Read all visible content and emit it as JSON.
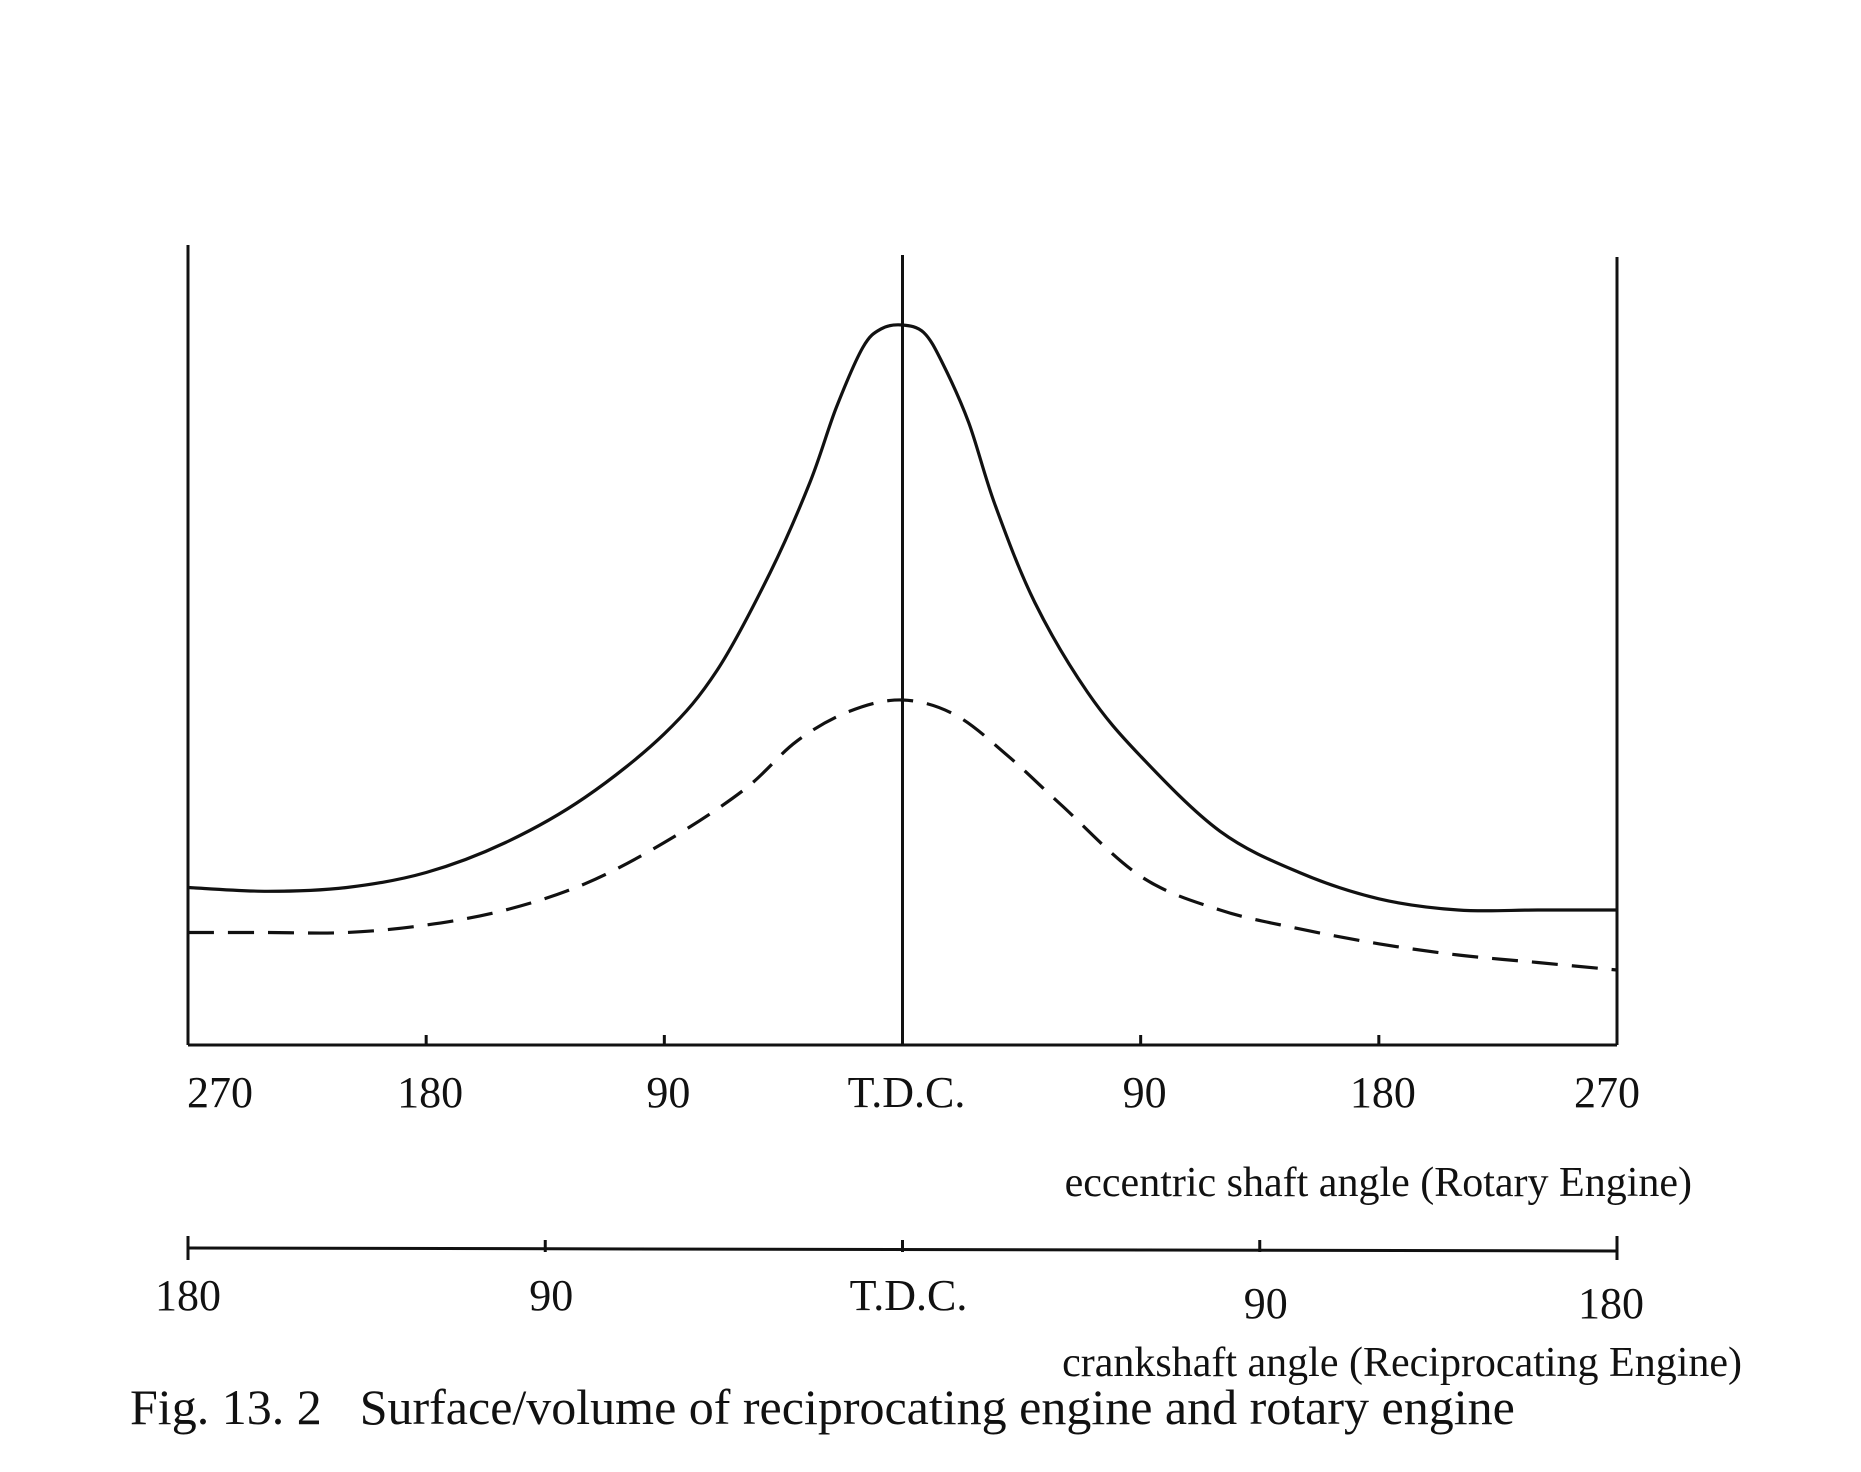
{
  "chart_data": {
    "type": "line",
    "title": "Surface/volume of reciprocating engine and rotary engine",
    "caption_number": "Fig. 13. 2",
    "x_primary": {
      "label": "eccentric shaft angle (Rotary Engine)",
      "range": [
        -270,
        270
      ],
      "ticks": [
        {
          "value": -270,
          "label": "270"
        },
        {
          "value": -180,
          "label": "180"
        },
        {
          "value": -90,
          "label": "90"
        },
        {
          "value": 0,
          "label": "T.D.C."
        },
        {
          "value": 90,
          "label": "90"
        },
        {
          "value": 180,
          "label": "180"
        },
        {
          "value": 270,
          "label": "270"
        }
      ]
    },
    "x_secondary": {
      "label": "crankshaft angle (Reciprocating Engine)",
      "range": [
        -180,
        180
      ],
      "ticks": [
        {
          "value": -180,
          "label": "180"
        },
        {
          "value": -90,
          "label": "90"
        },
        {
          "value": 0,
          "label": "T.D.C."
        },
        {
          "value": 90,
          "label": "90"
        },
        {
          "value": 180,
          "label": "180"
        }
      ]
    },
    "y_range": [
      0,
      100
    ],
    "grid": false,
    "series": [
      {
        "style": "solid",
        "x": [
          -270,
          -240,
          -210,
          -180,
          -150,
          -120,
          -90,
          -70,
          -50,
          -35,
          -25,
          -15,
          -8,
          0,
          8,
          15,
          25,
          35,
          50,
          70,
          90,
          120,
          150,
          180,
          210,
          240,
          270
        ],
        "y": [
          21,
          20.5,
          21,
          23,
          27,
          33,
          41.5,
          50,
          63,
          75,
          85,
          93,
          95.5,
          96,
          95,
          91,
          83,
          72,
          59,
          47,
          38.5,
          28.5,
          23,
          19.5,
          18,
          18,
          18
        ]
      },
      {
        "style": "dashed",
        "x": [
          -270,
          -240,
          -210,
          -180,
          -150,
          -120,
          -90,
          -60,
          -40,
          -20,
          0,
          20,
          40,
          60,
          90,
          120,
          150,
          180,
          210,
          240,
          270
        ],
        "y": [
          15,
          15,
          15,
          16,
          18,
          21.5,
          27,
          34,
          40.5,
          44.5,
          46,
          44,
          38.5,
          32,
          22.5,
          18,
          15.5,
          13.5,
          12,
          11,
          10
        ]
      }
    ]
  }
}
